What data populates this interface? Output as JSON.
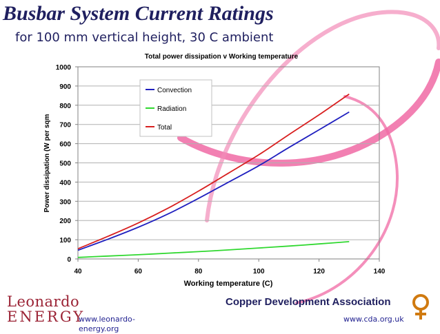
{
  "slide": {
    "title": "Busbar System Current Ratings",
    "subtitle": "for 100 mm vertical height, 30 C ambient"
  },
  "footer": {
    "leonardo_line1": "Leonardo",
    "leonardo_line2": "ENERGY",
    "leonardo_url": "www.leonardo-energy.org",
    "cda_name": "Copper Development Association",
    "cda_url": "www.cda.org.uk"
  },
  "colors": {
    "convection": "#1f1fbf",
    "radiation": "#2fd82f",
    "total": "#d81f1f",
    "ribbon": "#f06aa4",
    "title": "#1f1f5f",
    "leonardo": "#9b2335",
    "cda_logo": "#d07a10"
  },
  "chart_data": {
    "type": "line",
    "title": "Total power dissipation  v Working temperature",
    "xlabel": "Working temperature (C)",
    "ylabel": "Power dissipation (W per sqm",
    "xlim": [
      40,
      140
    ],
    "ylim": [
      0,
      1000
    ],
    "xticks": [
      40,
      60,
      80,
      100,
      120,
      140
    ],
    "yticks": [
      0,
      100,
      200,
      300,
      400,
      500,
      600,
      700,
      800,
      900,
      1000
    ],
    "grid": "horizontal",
    "legend_position": "top-center",
    "series": [
      {
        "name": "Convection",
        "color_key": "convection",
        "x": [
          40,
          50,
          60,
          70,
          80,
          90,
          100,
          110,
          120,
          130
        ],
        "y": [
          45,
          103,
          165,
          235,
          315,
          400,
          485,
          580,
          672,
          765
        ]
      },
      {
        "name": "Radiation",
        "color_key": "radiation",
        "x": [
          40,
          50,
          60,
          70,
          80,
          90,
          100,
          110,
          120,
          130
        ],
        "y": [
          8,
          15,
          22,
          30,
          38,
          47,
          57,
          67,
          78,
          90
        ]
      },
      {
        "name": "Total",
        "color_key": "total",
        "x": [
          40,
          50,
          60,
          70,
          80,
          90,
          100,
          110,
          120,
          130
        ],
        "y": [
          53,
          118,
          187,
          265,
          353,
          447,
          542,
          647,
          750,
          858
        ]
      }
    ]
  }
}
